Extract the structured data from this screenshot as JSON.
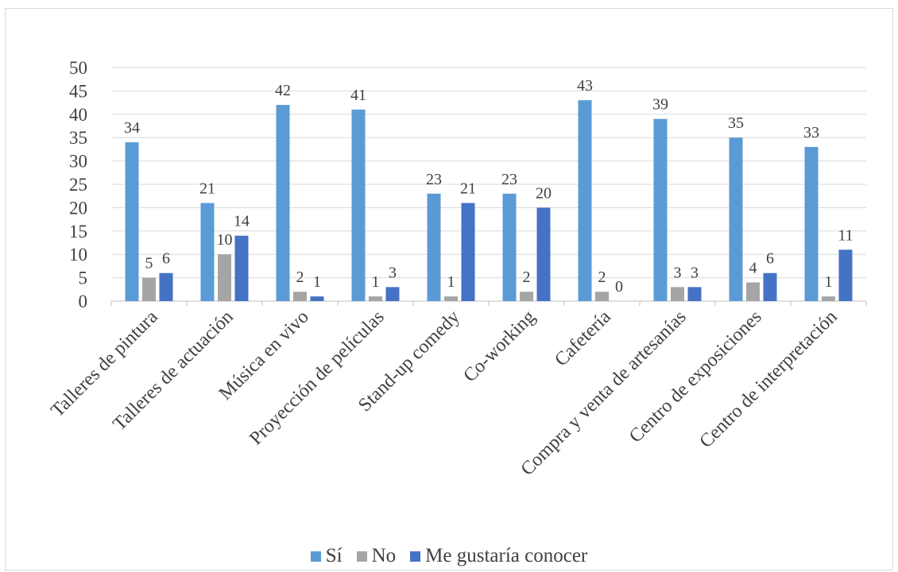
{
  "chart_data": {
    "type": "bar",
    "categories": [
      "Talleres de pintura",
      "Talleres de actuación",
      "Música en vivo",
      "Proyección de películas",
      "Stand-up comedy",
      "Co-working",
      "Cafetería",
      "Compra y venta de artesanías",
      "Centro de exposiciones",
      "Centro de interpretación"
    ],
    "series": [
      {
        "name": "Sí",
        "color": "#5b9bd5",
        "values": [
          34,
          21,
          42,
          41,
          23,
          23,
          43,
          39,
          35,
          33
        ]
      },
      {
        "name": "No",
        "color": "#a5a5a5",
        "values": [
          5,
          10,
          2,
          1,
          1,
          2,
          2,
          3,
          4,
          1
        ]
      },
      {
        "name": "Me gustaría conocer",
        "color": "#4472c4",
        "values": [
          6,
          14,
          1,
          3,
          21,
          20,
          0,
          3,
          6,
          11
        ]
      }
    ],
    "yticks": [
      0,
      5,
      10,
      15,
      20,
      25,
      30,
      35,
      40,
      45,
      50
    ],
    "ylim": [
      0,
      50
    ],
    "grid": true,
    "legend_position": "bottom"
  }
}
